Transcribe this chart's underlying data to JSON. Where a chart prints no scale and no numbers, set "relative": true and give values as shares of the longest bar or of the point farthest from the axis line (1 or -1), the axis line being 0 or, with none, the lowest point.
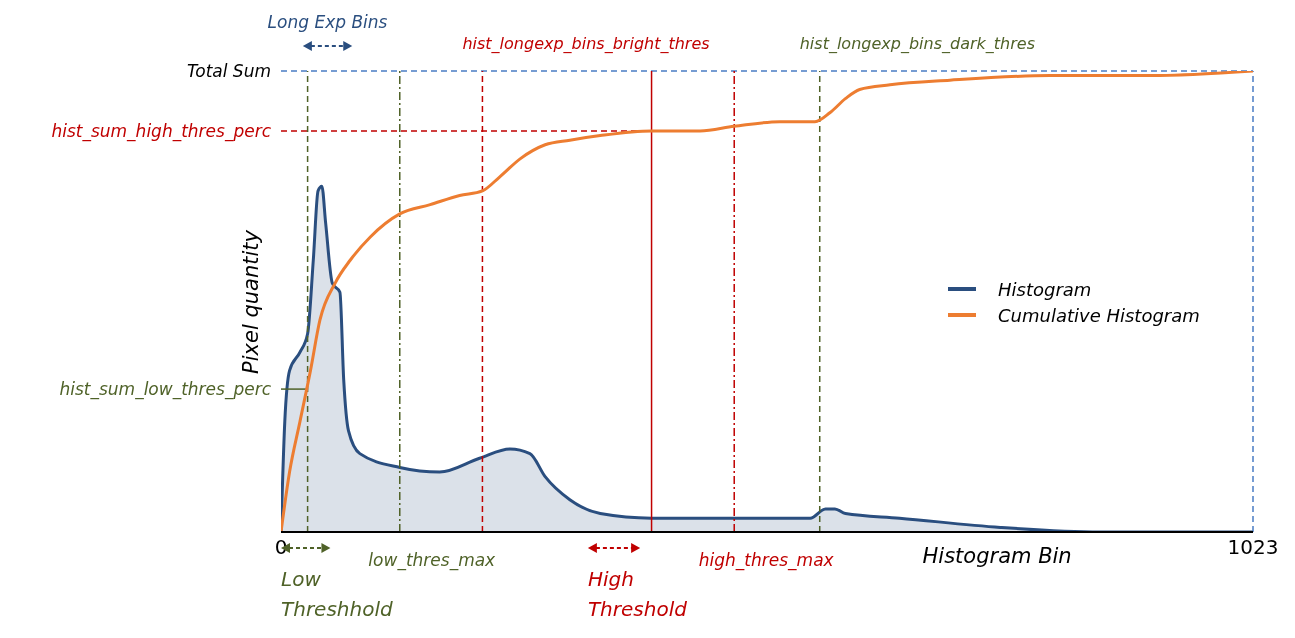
{
  "chart_data": {
    "type": "area",
    "relative": true,
    "xlabel": "Histogram Bin",
    "ylabel": "Pixel quantity",
    "xlim": [
      0,
      1023
    ],
    "xticks": [
      0,
      1023
    ],
    "legend": "right",
    "series": [
      {
        "name": "Histogram",
        "color": "#2a4e7f",
        "x": [
          0,
          4,
          9,
          20,
          28,
          34,
          39,
          43,
          47,
          54,
          62,
          66,
          71,
          83,
          125,
          167,
          209,
          241,
          262,
          278,
          304,
          336,
          390,
          477,
          557,
          573,
          583,
          594,
          651,
          757,
          862,
          1023
        ],
        "values": [
          0,
          0.24,
          0.35,
          0.39,
          0.43,
          0.59,
          0.74,
          0.75,
          0.67,
          0.54,
          0.52,
          0.33,
          0.22,
          0.17,
          0.14,
          0.13,
          0.16,
          0.18,
          0.17,
          0.12,
          0.07,
          0.04,
          0.03,
          0.03,
          0.03,
          0.05,
          0.05,
          0.04,
          0.03,
          0.01,
          0,
          0
        ]
      },
      {
        "name": "Cumulative Histogram",
        "type": "line",
        "color": "#ed7d31",
        "x": [
          0,
          9,
          20,
          31,
          41,
          57,
          73,
          94,
          125,
          157,
          188,
          212,
          230,
          252,
          278,
          304,
          336,
          390,
          441,
          477,
          525,
          562,
          578,
          594,
          609,
          641,
          704,
          809,
          915,
          1023
        ],
        "values": [
          0,
          0.13,
          0.24,
          0.35,
          0.46,
          0.54,
          0.59,
          0.64,
          0.69,
          0.71,
          0.73,
          0.74,
          0.77,
          0.81,
          0.84,
          0.85,
          0.86,
          0.87,
          0.87,
          0.88,
          0.89,
          0.89,
          0.91,
          0.94,
          0.96,
          0.97,
          0.98,
          0.99,
          0.99,
          1
        ]
      }
    ],
    "ref_lines": [
      {
        "axis": "y",
        "value": 1,
        "label": "Total Sum",
        "color": "#4a7cc4",
        "line_style": "dashed"
      },
      {
        "axis": "y",
        "value": 0.87,
        "label": "hist_sum_high_thres_perc",
        "color": "#c00000",
        "line_style": "dashed"
      },
      {
        "axis": "y",
        "value": 0.31,
        "label": "hist_sum_low_thres_perc",
        "color": "#4f6228",
        "line_style": "solid"
      },
      {
        "axis": "x",
        "value": 125,
        "label": "low_thres_max",
        "color": "#4f6228",
        "line_style": "dashdot"
      },
      {
        "axis": "x",
        "value": 212,
        "label": "hist_longexp_bins_bright_thres",
        "color": "#c00000",
        "line_style": "dashed"
      },
      {
        "axis": "x",
        "value": 477,
        "label": "high_thres_max",
        "color": "#c00000",
        "line_style": "dashdot"
      },
      {
        "axis": "x",
        "value": 567,
        "label": "hist_longexp_bins_dark_thres",
        "color": "#4f6228",
        "line_style": "dashed"
      },
      {
        "axis": "x",
        "value": 28,
        "color": "#4f6228",
        "line_style": "dashed"
      },
      {
        "axis": "x",
        "value": 390,
        "color": "#c00000",
        "line_style": "solid"
      },
      {
        "axis": "x",
        "value": 1023,
        "color": "#4a7cc4",
        "line_style": "dashed"
      }
    ],
    "annotations": [
      "Long Exp Bins",
      "Low Threshhold",
      "High Threshold"
    ]
  }
}
